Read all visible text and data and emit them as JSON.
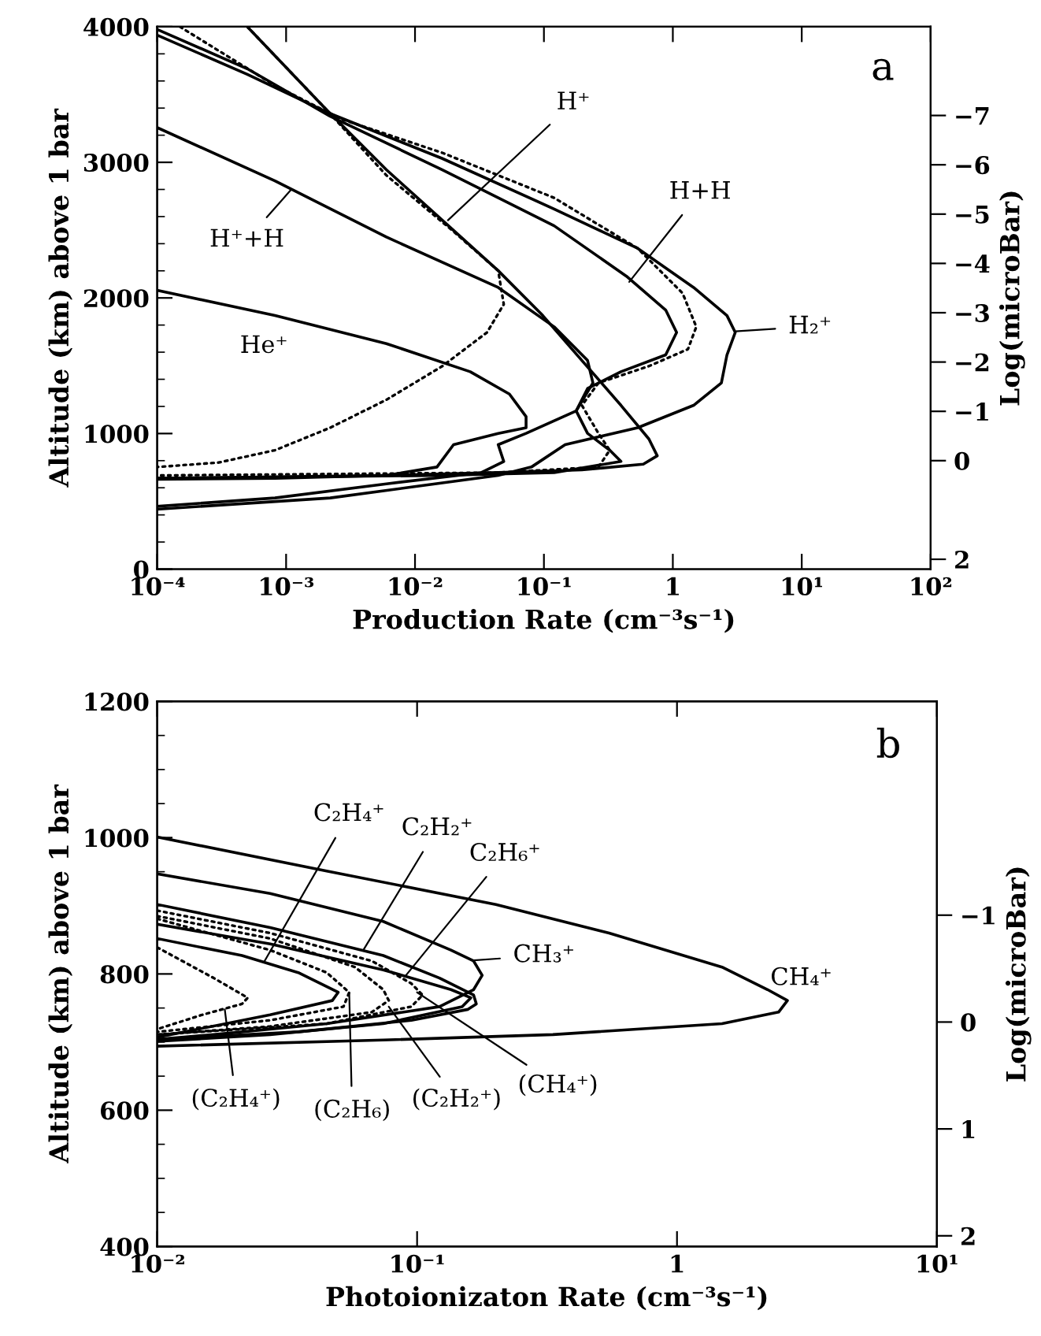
{
  "chart_data": [
    {
      "type": "line",
      "xlabel": "Production Rate (cm⁻³s⁻¹)",
      "ylabel": "Altitude (km) above 1 bar",
      "y2label": "Log(microBar)",
      "log": "x",
      "grid": false,
      "legend": false,
      "xlim": [
        0.0001,
        100
      ],
      "ylim": [
        0,
        4000
      ],
      "y2lim": [
        2.2,
        -8.8
      ],
      "xticks": [
        {
          "value": 0.0001,
          "label": "10⁻⁴"
        },
        {
          "value": 0.001,
          "label": "10⁻³"
        },
        {
          "value": 0.01,
          "label": "10⁻²"
        },
        {
          "value": 0.1,
          "label": "10⁻¹"
        },
        1,
        {
          "value": 10,
          "label": "10¹"
        },
        {
          "value": 100,
          "label": "10²"
        }
      ],
      "yticks": [
        0,
        1000,
        2000,
        3000,
        4000
      ],
      "y2ticks": [
        {
          "value": -7,
          "label": "−7"
        },
        {
          "value": -6,
          "label": "−6"
        },
        {
          "value": -5,
          "label": "−5"
        },
        {
          "value": -4,
          "label": "−4"
        },
        {
          "value": -3,
          "label": "−3"
        },
        {
          "value": -2,
          "label": "−2"
        },
        {
          "value": -1,
          "label": "−1"
        },
        0,
        2
      ],
      "series": [
        {
          "color": "#000000",
          "line_style": "solid",
          "x": [
            0.0001,
            0.0005,
            0.0022,
            0.0163,
            0.12,
            0.533,
            1.45,
            2.63,
            3.05,
            2.63,
            2.38,
            1.45,
            0.533,
            0.146,
            0.08,
            0.0442,
            0.0099,
            0.0022,
            0.0001
          ],
          "values": [
            3938,
            3649,
            3359,
            3028,
            2656,
            2366,
            2077,
            1870,
            1746,
            1580,
            1373,
            1208,
            1043,
            918,
            753,
            691,
            608,
            525,
            442
          ]
        },
        {
          "color": "#000000",
          "line_style": "solid",
          "x": [
            0.0001,
            0.0005,
            0.0022,
            0.0163,
            0.12,
            0.437,
            0.88,
            1.07,
            0.88,
            0.396,
            0.218,
            0.178,
            0.218,
            0.324,
            0.396,
            0.12,
            0.0163,
            0.0001
          ],
          "values": [
            3980,
            3690,
            3339,
            2945,
            2532,
            2160,
            1911,
            1746,
            1580,
            1456,
            1332,
            1167,
            1001,
            877,
            794,
            712,
            691,
            670
          ]
        },
        {
          "color": "#000000",
          "line_style": "dotted",
          "x": [
            0.00015,
            0.00082,
            0.0027,
            0.0163,
            0.12,
            0.533,
            1.19,
            1.52,
            1.31,
            0.652,
            0.265,
            0.197,
            0.265,
            0.324,
            0.265,
            0.0442,
            0.0001
          ],
          "values": [
            4000,
            3566,
            3318,
            3070,
            2738,
            2366,
            2035,
            1787,
            1622,
            1497,
            1373,
            1208,
            1001,
            877,
            753,
            712,
            691
          ]
        },
        {
          "color": "#000000",
          "line_style": "solid",
          "x": [
            0.0005,
            0.002,
            0.006,
            0.0163,
            0.0442,
            0.098,
            0.197,
            0.396,
            0.652,
            0.757,
            0.59,
            0.197,
            0.0442,
            0.006,
            0.0001
          ],
          "values": [
            4000,
            3400,
            2945,
            2573,
            2201,
            1870,
            1539,
            1208,
            960,
            836,
            774,
            732,
            712,
            691,
            670
          ]
        },
        {
          "color": "#000000",
          "line_style": "dotted",
          "x": [
            0.0005,
            0.002,
            0.006,
            0.0199,
            0.0442,
            0.0488,
            0.0362,
            0.0163,
            0.006,
            0.0022,
            0.00082,
            0.0003,
            0.0001
          ],
          "values": [
            4000,
            3400,
            2904,
            2490,
            2201,
            1953,
            1746,
            1497,
            1249,
            1043,
            877,
            786,
            753
          ]
        },
        {
          "color": "#000000",
          "line_style": "solid",
          "x": [
            0.0001,
            0.00082,
            0.006,
            0.0442,
            0.12,
            0.218,
            0.24,
            0.178,
            0.0727,
            0.0442,
            0.0488,
            0.0327,
            0.006,
            0.00082,
            0.0001
          ],
          "values": [
            3256,
            2863,
            2449,
            2077,
            1787,
            1539,
            1373,
            1167,
            1001,
            918,
            794,
            712,
            629,
            525,
            463
          ]
        },
        {
          "color": "#000000",
          "line_style": "solid",
          "x": [
            0.0001,
            0.00082,
            0.006,
            0.0268,
            0.054,
            0.0727,
            0.0727,
            0.0442,
            0.0199,
            0.0148,
            0.006,
            0.00082,
            0.0001
          ],
          "values": [
            2056,
            1870,
            1663,
            1456,
            1291,
            1125,
            1043,
            1001,
            918,
            753,
            691,
            670,
            662
          ]
        }
      ],
      "annotations": [
        "a",
        {
          "text": "H⁺",
          "x": 0.018,
          "y": 2573
        },
        {
          "text": "H⁺+H",
          "x": 0.0011,
          "y": 2801
        },
        {
          "text": "H+H",
          "x": 0.459,
          "y": 2118
        },
        {
          "text": "H₂⁺",
          "x": 3.05,
          "y": 1754
        },
        "He⁺"
      ]
    },
    {
      "type": "line",
      "xlabel": "Photoionizaton Rate (cm⁻³s⁻¹)",
      "ylabel": "Altitude (km) above 1 bar",
      "y2label": "Log(microBar)",
      "log": "x",
      "grid": false,
      "legend": false,
      "xlim": [
        0.01,
        10
      ],
      "ylim": [
        400,
        1200
      ],
      "y2lim": [
        2.1,
        -3.0
      ],
      "xticks": [
        {
          "value": 0.01,
          "label": "10⁻²"
        },
        {
          "value": 0.1,
          "label": "10⁻¹"
        },
        1,
        {
          "value": 10,
          "label": "10¹"
        }
      ],
      "yticks": [
        400,
        600,
        800,
        1000,
        1200
      ],
      "y2ticks": [
        {
          "value": -1,
          "label": "−1"
        },
        0,
        1,
        2
      ],
      "series": [
        {
          "color": "#000000",
          "line_style": "solid",
          "x": [
            0.01,
            0.0449,
            0.201,
            0.548,
            1.49,
            2.23,
            2.66,
            2.46,
            1.49,
            0.333,
            0.0741,
            0.01
          ],
          "values": [
            1001,
            951,
            902,
            860,
            810,
            777,
            761,
            744,
            727,
            711,
            703,
            694
          ]
        },
        {
          "color": "#000000",
          "line_style": "solid",
          "x": [
            0.01,
            0.0272,
            0.0741,
            0.135,
            0.165,
            0.178,
            0.165,
            0.122,
            0.0449,
            0.0165,
            0.01
          ],
          "values": [
            947,
            918,
            877,
            835,
            819,
            798,
            777,
            752,
            727,
            711,
            704
          ]
        },
        {
          "color": "#000000",
          "line_style": "solid",
          "x": [
            0.01,
            0.0272,
            0.0741,
            0.122,
            0.165,
            0.169,
            0.157,
            0.095,
            0.0349,
            0.01
          ],
          "values": [
            902,
            868,
            827,
            794,
            769,
            756,
            748,
            732,
            715,
            704
          ]
        },
        {
          "color": "#000000",
          "line_style": "solid",
          "x": [
            0.01,
            0.0272,
            0.0741,
            0.135,
            0.161,
            0.149,
            0.0741,
            0.0272,
            0.01
          ],
          "values": [
            873,
            844,
            806,
            777,
            765,
            752,
            727,
            711,
            701
          ]
        },
        {
          "color": "#000000",
          "line_style": "solid",
          "x": [
            0.01,
            0.0212,
            0.0349,
            0.0497,
            0.0472,
            0.0272,
            0.01
          ],
          "values": [
            852,
            827,
            802,
            773,
            761,
            740,
            707
          ]
        },
        {
          "color": "#000000",
          "line_style": "dotted",
          "x": [
            0.01,
            0.0165,
            0.0223,
            0.0212,
            0.0149,
            0.01
          ],
          "values": [
            839,
            794,
            765,
            756,
            740,
            719
          ]
        },
        {
          "color": "#000000",
          "line_style": "dotted",
          "x": [
            0.01,
            0.0272,
            0.0449,
            0.0548,
            0.0521,
            0.0272,
            0.01
          ],
          "values": [
            881,
            835,
            802,
            773,
            752,
            732,
            715
          ]
        },
        {
          "color": "#000000",
          "line_style": "dotted",
          "x": [
            0.01,
            0.0272,
            0.0577,
            0.0741,
            0.0778,
            0.067,
            0.0272,
            0.01
          ],
          "values": [
            885,
            852,
            810,
            777,
            761,
            744,
            723,
            711
          ]
        },
        {
          "color": "#000000",
          "line_style": "dotted",
          "x": [
            0.01,
            0.0272,
            0.067,
            0.095,
            0.105,
            0.095,
            0.0449,
            0.01
          ],
          "values": [
            893,
            860,
            819,
            786,
            769,
            752,
            727,
            711
          ]
        }
      ],
      "annotations": [
        "b",
        {
          "text": "C₂H₄⁺",
          "x": 0.0259,
          "y": 819
        },
        {
          "text": "C₂H₂⁺",
          "x": 0.0621,
          "y": 835
        },
        {
          "text": "C₂H₆⁺",
          "x": 0.0906,
          "y": 798
        },
        {
          "text": "CH₃⁺",
          "x": 0.165,
          "y": 820
        },
        "CH₄⁺",
        {
          "text": "(C₂H₄⁺)",
          "x": 0.0182,
          "y": 748
        },
        {
          "text": "(C₂H₆)",
          "x": 0.0548,
          "y": 773
        },
        {
          "text": "(C₂H₂⁺)",
          "x": 0.0778,
          "y": 752
        },
        {
          "text": "(CH₄⁺)",
          "x": 0.1,
          "y": 773
        }
      ]
    }
  ]
}
